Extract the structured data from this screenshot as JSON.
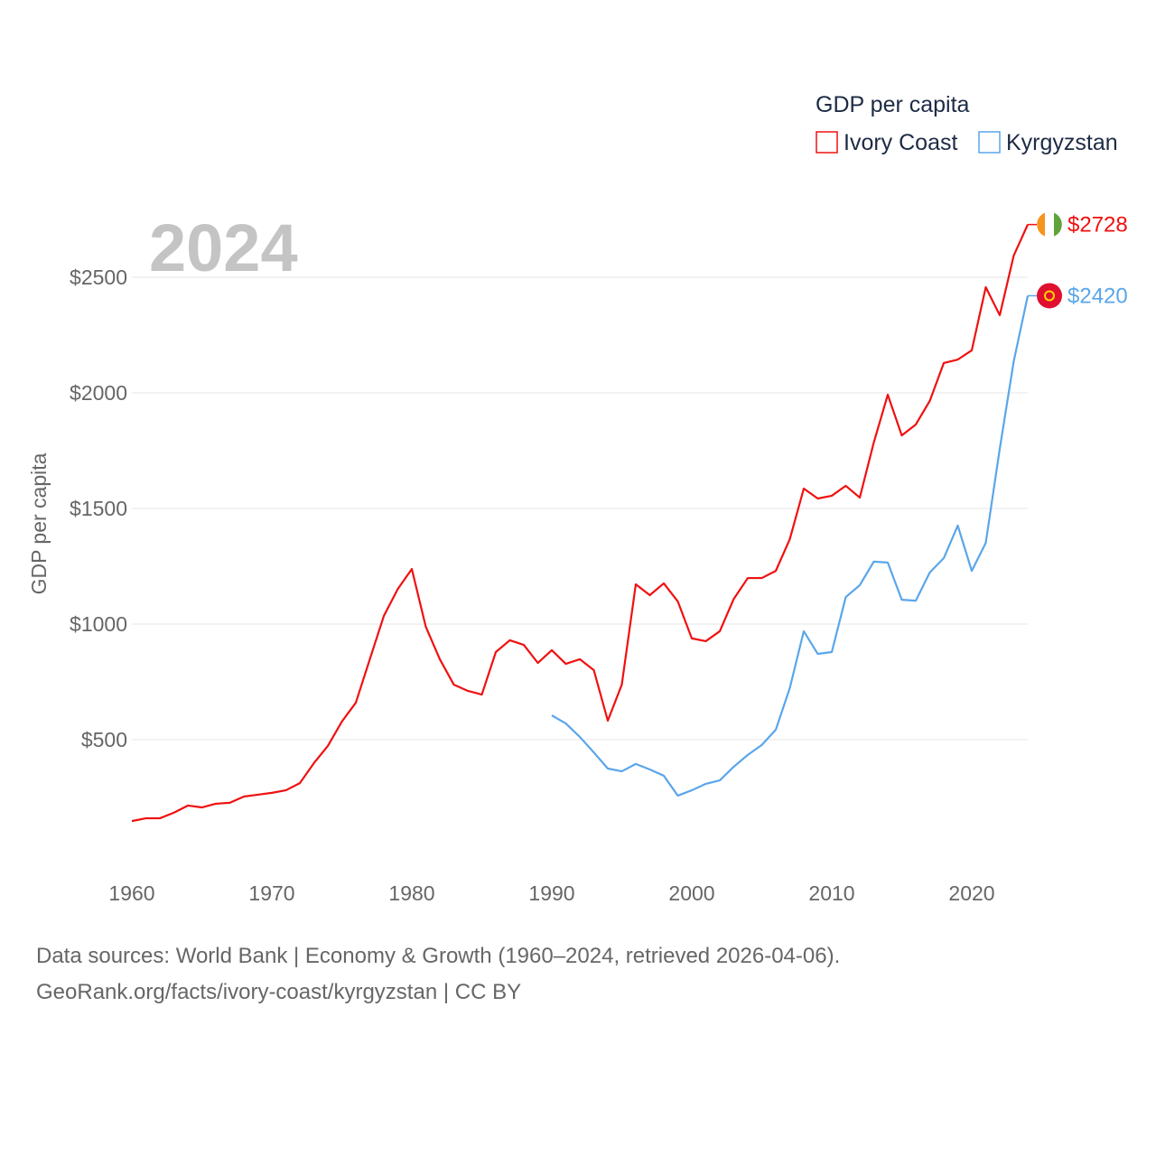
{
  "chart_data": {
    "type": "line",
    "year_label": "2024",
    "legend_title": "GDP per capita",
    "legend_placement": "top-right",
    "ylabel": "GDP per capita",
    "xlabel": "",
    "ylim": [
      0,
      2750
    ],
    "xlim": [
      1960,
      2024
    ],
    "yticks": [
      500,
      1000,
      1500,
      2000,
      2500
    ],
    "ytick_labels": [
      "$500",
      "$1000",
      "$1500",
      "$2000",
      "$2500"
    ],
    "xticks": [
      1960,
      1970,
      1980,
      1990,
      2000,
      2010,
      2020
    ],
    "xtick_labels": [
      "1960",
      "1970",
      "1980",
      "1990",
      "2000",
      "2010",
      "2020"
    ],
    "grid": true,
    "series": [
      {
        "name": "Ivory Coast",
        "color": "#f01010",
        "flag": "ivory-coast-flag",
        "end_label": "$2728",
        "start_year": 1960,
        "values": [
          148,
          160,
          160,
          184,
          215,
          207,
          223,
          227,
          254,
          262,
          270,
          281,
          312,
          398,
          473,
          578,
          660,
          848,
          1035,
          1152,
          1238,
          988,
          848,
          738,
          711,
          695,
          879,
          930,
          910,
          832,
          887,
          828,
          848,
          801,
          582,
          738,
          1172,
          1125,
          1176,
          1098,
          938,
          926,
          969,
          1109,
          1199,
          1199,
          1230,
          1367,
          1586,
          1543,
          1555,
          1598,
          1547,
          1785,
          1992,
          1816,
          1863,
          1965,
          2129,
          2144,
          2184,
          2457,
          2336,
          2594,
          2728
        ]
      },
      {
        "name": "Kyrgyzstan",
        "color": "#5aa6ea",
        "flag": "kyrgyzstan-flag",
        "end_label": "$2420",
        "start_year": 1990,
        "values": [
          605,
          570,
          512,
          445,
          375,
          363,
          395,
          371,
          344,
          258,
          281,
          309,
          324,
          383,
          434,
          477,
          543,
          723,
          969,
          871,
          879,
          1117,
          1168,
          1270,
          1266,
          1105,
          1101,
          1223,
          1285,
          1426,
          1230,
          1351,
          1758,
          2137,
          2420
        ]
      }
    ]
  },
  "footer": {
    "line1": "Data sources: World Bank | Economy & Growth (1960–2024, retrieved 2026-04-06).",
    "line2": "GeoRank.org/facts/ivory-coast/kyrgyzstan | CC BY"
  }
}
